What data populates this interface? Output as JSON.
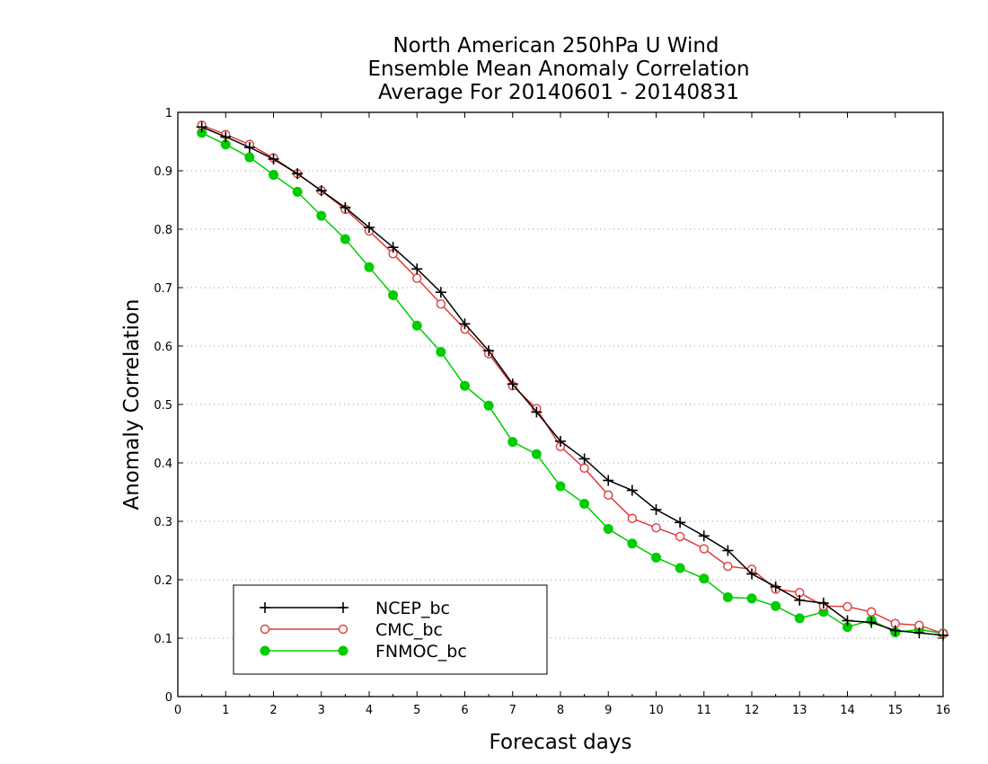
{
  "chart_data": {
    "type": "line",
    "title": [
      "North American 250hPa U Wind",
      "Ensemble Mean Anomaly Correlation",
      "Average For 20140601 - 20140831"
    ],
    "xlabel": "Forecast days",
    "ylabel": "Anomaly Correlation",
    "xlim": [
      0,
      16
    ],
    "ylim": [
      0,
      1
    ],
    "xticks": [
      0,
      1,
      2,
      3,
      4,
      5,
      6,
      7,
      8,
      9,
      10,
      11,
      12,
      13,
      14,
      15,
      16
    ],
    "yticks": [
      0,
      0.1,
      0.2,
      0.3,
      0.4,
      0.5,
      0.6,
      0.7,
      0.8,
      0.9,
      1
    ],
    "ytick_labels": [
      "0",
      "0.1",
      "0.2",
      "0.3",
      "0.4",
      "0.5",
      "0.6",
      "0.7",
      "0.8",
      "0.9",
      "1"
    ],
    "grid": "horizontal-dotted",
    "legend_placement": "bottom-left",
    "x": [
      0.5,
      1,
      1.5,
      2,
      2.5,
      3,
      3.5,
      4,
      4.5,
      5,
      5.5,
      6,
      6.5,
      7,
      7.5,
      8,
      8.5,
      9,
      9.5,
      10,
      10.5,
      11,
      11.5,
      12,
      12.5,
      13,
      13.5,
      14,
      14.5,
      15,
      15.5,
      16
    ],
    "series": [
      {
        "name": "NCEP_bc",
        "color": "#000000",
        "marker": "plus",
        "values": [
          0.975,
          0.958,
          0.94,
          0.92,
          0.895,
          0.866,
          0.837,
          0.803,
          0.769,
          0.732,
          0.692,
          0.638,
          0.592,
          0.535,
          0.487,
          0.437,
          0.407,
          0.37,
          0.353,
          0.32,
          0.298,
          0.275,
          0.25,
          0.21,
          0.188,
          0.165,
          0.16,
          0.13,
          0.127,
          0.113,
          0.109,
          0.105
        ]
      },
      {
        "name": "CMC_bc",
        "color": "#e03c3c",
        "marker": "open-circle",
        "values": [
          0.978,
          0.962,
          0.945,
          0.922,
          0.895,
          0.866,
          0.834,
          0.797,
          0.758,
          0.716,
          0.672,
          0.629,
          0.587,
          0.532,
          0.493,
          0.428,
          0.391,
          0.345,
          0.305,
          0.289,
          0.274,
          0.253,
          0.223,
          0.218,
          0.184,
          0.178,
          0.155,
          0.154,
          0.145,
          0.125,
          0.122,
          0.108
        ]
      },
      {
        "name": "FNMOC_bc",
        "color": "#00cc00",
        "marker": "filled-circle",
        "values": [
          0.965,
          0.945,
          0.923,
          0.893,
          0.864,
          0.823,
          0.783,
          0.735,
          0.687,
          0.635,
          0.59,
          0.532,
          0.498,
          0.436,
          0.415,
          0.36,
          0.33,
          0.287,
          0.262,
          0.238,
          0.22,
          0.202,
          0.17,
          0.168,
          0.155,
          0.134,
          0.145,
          0.119,
          0.131,
          0.11,
          0.115,
          0.108
        ]
      }
    ]
  }
}
